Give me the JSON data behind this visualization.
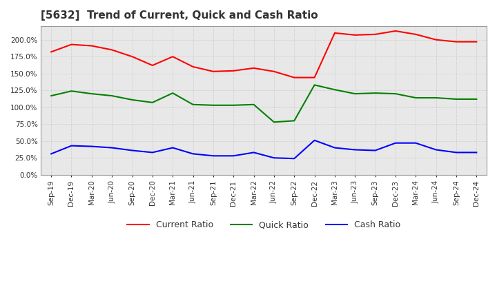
{
  "title": "[5632]  Trend of Current, Quick and Cash Ratio",
  "x_labels": [
    "Sep-19",
    "Dec-19",
    "Mar-20",
    "Jun-20",
    "Sep-20",
    "Dec-20",
    "Mar-21",
    "Jun-21",
    "Sep-21",
    "Dec-21",
    "Mar-22",
    "Jun-22",
    "Sep-22",
    "Dec-22",
    "Mar-23",
    "Jun-23",
    "Sep-23",
    "Dec-23",
    "Mar-24",
    "Jun-24",
    "Sep-24",
    "Dec-24"
  ],
  "current_ratio": [
    182,
    193,
    191,
    185,
    175,
    162,
    175,
    160,
    153,
    154,
    158,
    153,
    144,
    144,
    210,
    207,
    208,
    213,
    208,
    200,
    197,
    197
  ],
  "quick_ratio": [
    117,
    124,
    120,
    117,
    111,
    107,
    121,
    104,
    103,
    103,
    104,
    78,
    80,
    133,
    126,
    120,
    121,
    120,
    114,
    114,
    112,
    112
  ],
  "cash_ratio": [
    31,
    43,
    42,
    40,
    36,
    33,
    40,
    31,
    28,
    28,
    33,
    25,
    24,
    51,
    40,
    37,
    36,
    47,
    47,
    37,
    33,
    33
  ],
  "current_color": "#ff0000",
  "quick_color": "#008000",
  "cash_color": "#0000ff",
  "ylim": [
    0,
    220
  ],
  "yticks": [
    0,
    25,
    50,
    75,
    100,
    125,
    150,
    175,
    200
  ],
  "plot_bg_color": "#e8e8e8",
  "fig_bg_color": "#ffffff",
  "grid_color": "#aaaaaa",
  "title_fontsize": 11,
  "tick_fontsize": 7.5,
  "legend_fontsize": 9
}
